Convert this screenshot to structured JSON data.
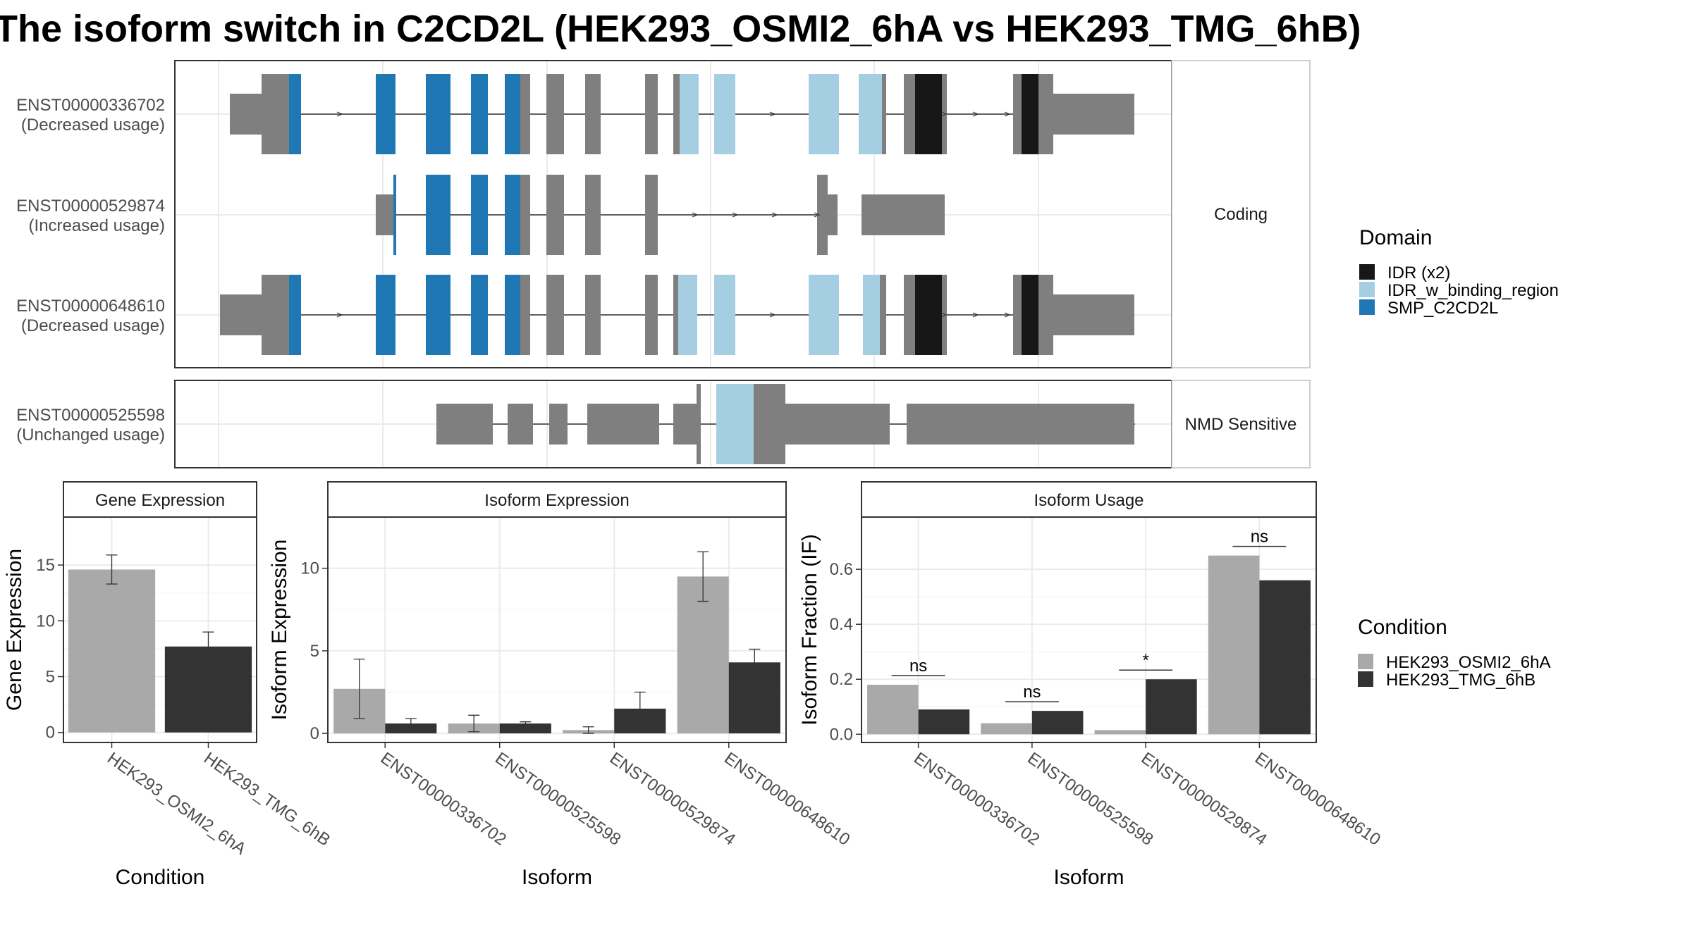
{
  "title": "The isoform switch in C2CD2L (HEK293_OSMI2_6hA vs HEK293_TMG_6hB)",
  "colors": {
    "idr": "#171717",
    "idr_binding": "#a6cee3",
    "smp": "#1f78b4",
    "exon": "#7f7f7f",
    "cond_a": "#a9a9a9",
    "cond_b": "#333333"
  },
  "structure": {
    "facets": [
      "Coding",
      "NMD Sensitive"
    ],
    "transcripts": [
      {
        "id": "ENST00000336702",
        "usage": "(Decreased usage)",
        "facet": "Coding"
      },
      {
        "id": "ENST00000529874",
        "usage": "(Increased usage)",
        "facet": "Coding"
      },
      {
        "id": "ENST00000648610",
        "usage": "(Decreased usage)",
        "facet": "Coding"
      },
      {
        "id": "ENST00000525598",
        "usage": "(Unchanged usage)",
        "facet": "NMD Sensitive"
      }
    ]
  },
  "legend_domain": {
    "title": "Domain",
    "items": [
      {
        "label": "IDR (x2)",
        "color_key": "idr"
      },
      {
        "label": "IDR_w_binding_region",
        "color_key": "idr_binding"
      },
      {
        "label": "SMP_C2CD2L",
        "color_key": "smp"
      }
    ]
  },
  "legend_condition": {
    "title": "Condition",
    "items": [
      {
        "label": "HEK293_OSMI2_6hA",
        "color_key": "cond_a"
      },
      {
        "label": "HEK293_TMG_6hB",
        "color_key": "cond_b"
      }
    ]
  },
  "chart_data": [
    {
      "type": "bar",
      "title": "Gene Expression",
      "xlabel": "Condition",
      "ylabel": "Gene Expression",
      "categories": [
        "HEK293_OSMI2_6hA",
        "HEK293_TMG_6hB"
      ],
      "values": [
        14.6,
        7.7
      ],
      "errors": [
        [
          13.3,
          15.9
        ],
        [
          6.5,
          9.0
        ]
      ],
      "ylim": [
        -0.9,
        19.3
      ],
      "yticks": [
        0,
        5,
        10,
        15
      ]
    },
    {
      "type": "bar",
      "title": "Isoform Expression",
      "xlabel": "Isoform",
      "ylabel": "Isoform Expression",
      "categories": [
        "ENST00000336702",
        "ENST00000525598",
        "ENST00000529874",
        "ENST00000648610"
      ],
      "series": [
        {
          "name": "HEK293_OSMI2_6hA",
          "values": [
            2.7,
            0.6,
            0.2,
            9.5
          ],
          "errors": [
            [
              0.9,
              4.5
            ],
            [
              0.1,
              1.1
            ],
            [
              0.0,
              0.4
            ],
            [
              8.0,
              11.0
            ]
          ]
        },
        {
          "name": "HEK293_TMG_6hB",
          "values": [
            0.6,
            0.6,
            1.5,
            4.3
          ],
          "errors": [
            [
              0.4,
              0.9
            ],
            [
              0.5,
              0.7
            ],
            [
              0.6,
              2.5
            ],
            [
              3.5,
              5.1
            ]
          ]
        }
      ],
      "ylim": [
        -0.55,
        13.1
      ],
      "yticks": [
        0,
        5,
        10
      ]
    },
    {
      "type": "bar",
      "title": "Isoform Usage",
      "xlabel": "Isoform",
      "ylabel": "Isoform Fraction (IF)",
      "categories": [
        "ENST00000336702",
        "ENST00000525598",
        "ENST00000529874",
        "ENST00000648610"
      ],
      "series": [
        {
          "name": "HEK293_OSMI2_6hA",
          "values": [
            0.18,
            0.04,
            0.015,
            0.65
          ]
        },
        {
          "name": "HEK293_TMG_6hB",
          "values": [
            0.09,
            0.085,
            0.2,
            0.56
          ]
        }
      ],
      "significance": [
        "ns",
        "ns",
        "*",
        "ns"
      ],
      "ylim": [
        -0.03,
        0.79
      ],
      "yticks": [
        "0.0",
        "0.2",
        "0.4",
        "0.6"
      ]
    }
  ]
}
